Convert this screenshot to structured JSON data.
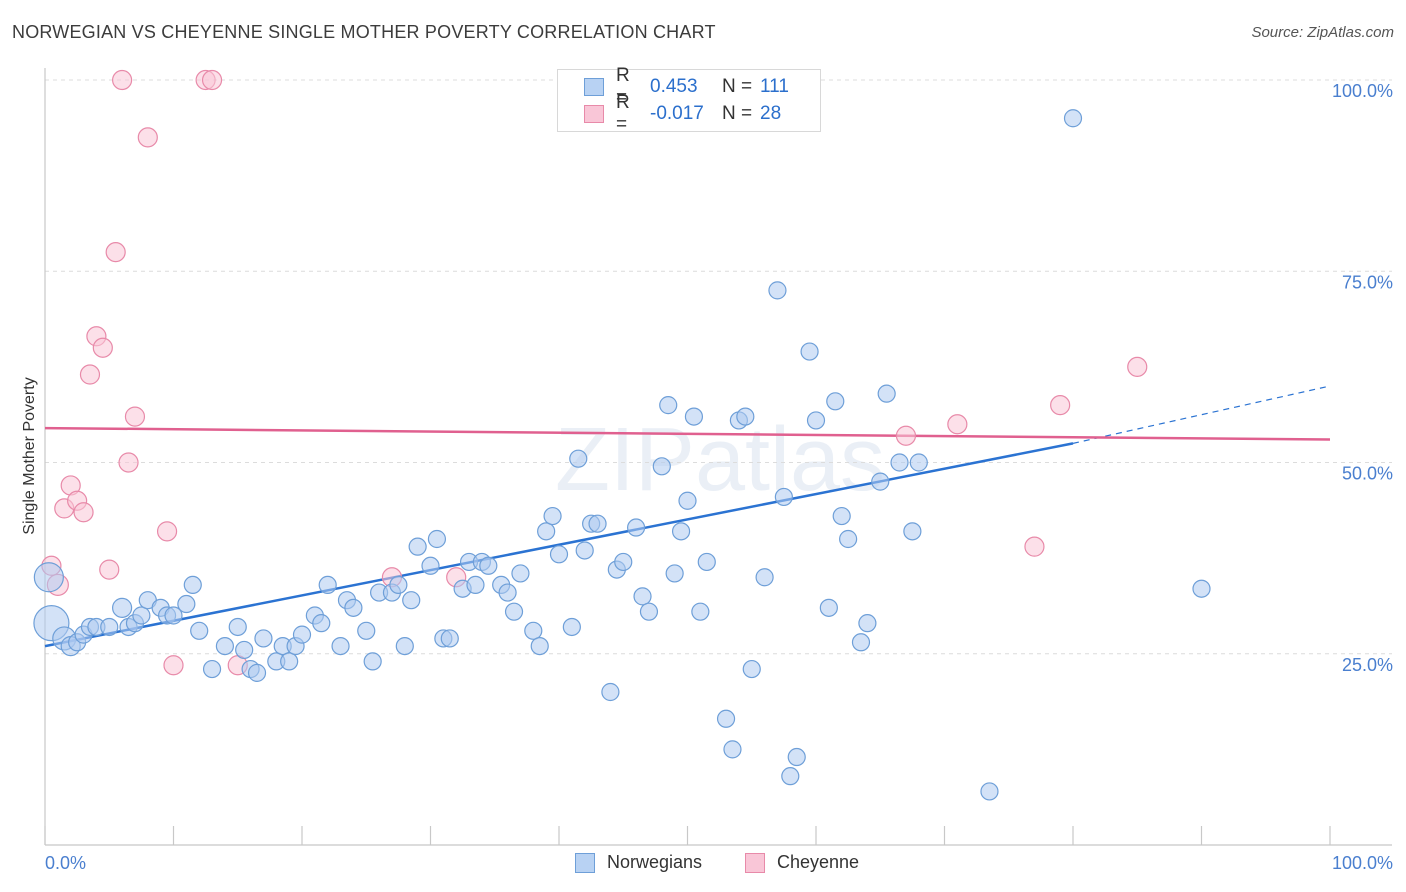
{
  "title": "NORWEGIAN VS CHEYENNE SINGLE MOTHER POVERTY CORRELATION CHART",
  "source": "Source: ZipAtlas.com",
  "watermark": "ZIPatlas",
  "legend": {
    "rows": [
      {
        "r_label": "R =",
        "r_value": "0.453",
        "n_label": "N =",
        "n_value": "111",
        "color": "#9fc3ee",
        "border": "#6e9fd8"
      },
      {
        "r_label": "R =",
        "r_value": "-0.017",
        "n_label": "N =",
        "n_value": "28",
        "color": "#f6b9ce",
        "border": "#e88aa9"
      }
    ]
  },
  "bottom_legend": [
    {
      "label": "Norwegians",
      "color": "#aecbf0",
      "border": "#6e9fd8"
    },
    {
      "label": "Cheyenne",
      "color": "#f9c6d7",
      "border": "#e88aa9"
    }
  ],
  "chart_data": {
    "type": "scatter",
    "title": "NORWEGIAN VS CHEYENNE SINGLE MOTHER POVERTY CORRELATION CHART",
    "xlabel": "",
    "ylabel": "Single Mother Poverty",
    "xlim": [
      0,
      100
    ],
    "ylim": [
      0,
      100
    ],
    "x_tick_labels": [
      "0.0%",
      "100.0%"
    ],
    "y_tick_labels": [
      "25.0%",
      "50.0%",
      "75.0%",
      "100.0%"
    ],
    "y_ticks": [
      25,
      50,
      75,
      100
    ],
    "grid": true,
    "series": [
      {
        "name": "Norwegians",
        "color": "#6e9fd8",
        "fill": "#aecbf0",
        "trend": {
          "x": [
            0,
            80
          ],
          "y": [
            26.0,
            52.5
          ],
          "dashed_to": [
            100,
            60.0
          ],
          "color": "#2b73d2"
        },
        "points": [
          [
            0.5,
            29,
            16
          ],
          [
            0.3,
            35,
            13
          ],
          [
            1.5,
            27,
            10
          ],
          [
            2,
            26,
            8
          ],
          [
            2.5,
            26.5,
            7
          ],
          [
            3,
            27.5,
            7
          ],
          [
            3.5,
            28.5,
            7
          ],
          [
            4,
            28.5,
            7
          ],
          [
            5,
            28.5,
            7
          ],
          [
            6,
            31,
            8
          ],
          [
            6.5,
            28.5,
            7
          ],
          [
            7,
            29,
            7
          ],
          [
            7.5,
            30,
            7
          ],
          [
            8,
            32,
            7
          ],
          [
            9,
            31,
            7
          ],
          [
            9.5,
            30,
            7
          ],
          [
            10,
            30,
            7
          ],
          [
            11,
            31.5,
            7
          ],
          [
            11.5,
            34,
            7
          ],
          [
            12,
            28,
            7
          ],
          [
            13,
            23,
            7
          ],
          [
            14,
            26,
            7
          ],
          [
            15,
            28.5,
            7
          ],
          [
            15.5,
            25.5,
            7
          ],
          [
            16,
            23,
            7
          ],
          [
            16.5,
            22.5,
            7
          ],
          [
            17,
            27,
            7
          ],
          [
            18,
            24,
            7
          ],
          [
            18.5,
            26,
            7
          ],
          [
            19,
            24,
            7
          ],
          [
            19.5,
            26,
            7
          ],
          [
            20,
            27.5,
            7
          ],
          [
            21,
            30,
            7
          ],
          [
            21.5,
            29,
            7
          ],
          [
            22,
            34,
            7
          ],
          [
            23,
            26,
            7
          ],
          [
            23.5,
            32,
            7
          ],
          [
            24,
            31,
            7
          ],
          [
            25,
            28,
            7
          ],
          [
            25.5,
            24,
            7
          ],
          [
            26,
            33,
            7
          ],
          [
            27,
            33,
            7
          ],
          [
            27.5,
            34,
            7
          ],
          [
            28,
            26,
            7
          ],
          [
            28.5,
            32,
            7
          ],
          [
            29,
            39,
            7
          ],
          [
            30,
            36.5,
            7
          ],
          [
            30.5,
            40,
            7
          ],
          [
            31,
            27,
            7
          ],
          [
            31.5,
            27,
            7
          ],
          [
            32.5,
            33.5,
            7
          ],
          [
            33,
            37,
            7
          ],
          [
            33.5,
            34,
            7
          ],
          [
            34,
            37,
            7
          ],
          [
            34.5,
            36.5,
            7
          ],
          [
            35.5,
            34,
            7
          ],
          [
            36,
            33,
            7
          ],
          [
            36.5,
            30.5,
            7
          ],
          [
            37,
            35.5,
            7
          ],
          [
            38,
            28,
            7
          ],
          [
            38.5,
            26,
            7
          ],
          [
            39,
            41,
            7
          ],
          [
            39.5,
            43,
            7
          ],
          [
            40,
            38,
            7
          ],
          [
            41,
            28.5,
            7
          ],
          [
            41.5,
            50.5,
            7
          ],
          [
            42,
            38.5,
            7
          ],
          [
            42.5,
            42,
            7
          ],
          [
            43,
            42,
            7
          ],
          [
            44,
            20,
            7
          ],
          [
            44.5,
            36,
            7
          ],
          [
            45,
            37,
            7
          ],
          [
            46,
            41.5,
            7
          ],
          [
            46.5,
            32.5,
            7
          ],
          [
            47,
            30.5,
            7
          ],
          [
            48,
            49.5,
            7
          ],
          [
            48.5,
            57.5,
            7
          ],
          [
            49,
            35.5,
            7
          ],
          [
            49.5,
            41,
            7
          ],
          [
            50,
            45,
            7
          ],
          [
            50.5,
            56,
            7
          ],
          [
            51,
            30.5,
            7
          ],
          [
            51.5,
            37,
            7
          ],
          [
            53,
            16.5,
            7
          ],
          [
            53.5,
            12.5,
            7
          ],
          [
            54,
            55.5,
            7
          ],
          [
            54.5,
            56,
            7
          ],
          [
            55,
            23,
            7
          ],
          [
            56,
            35,
            7
          ],
          [
            57,
            72.5,
            7
          ],
          [
            57.5,
            45.5,
            7
          ],
          [
            58,
            9,
            7
          ],
          [
            58.5,
            11.5,
            7
          ],
          [
            59.5,
            64.5,
            7
          ],
          [
            60,
            55.5,
            7
          ],
          [
            61,
            31,
            7
          ],
          [
            61.5,
            58,
            7
          ],
          [
            62,
            43,
            7
          ],
          [
            62.5,
            40,
            7
          ],
          [
            63.5,
            26.5,
            7
          ],
          [
            64,
            29,
            7
          ],
          [
            65,
            47.5,
            7
          ],
          [
            65.5,
            59,
            7
          ],
          [
            66.5,
            50,
            7
          ],
          [
            67.5,
            41,
            7
          ],
          [
            68,
            50,
            7
          ],
          [
            73.5,
            7,
            7
          ],
          [
            80,
            95,
            7
          ],
          [
            90,
            33.5,
            7
          ]
        ]
      },
      {
        "name": "Cheyenne",
        "color": "#e88aa9",
        "fill": "#f9c6d7",
        "trend": {
          "x": [
            0,
            100
          ],
          "y": [
            54.5,
            53.0
          ],
          "color": "#e0608f"
        },
        "points": [
          [
            0.5,
            36.5,
            8
          ],
          [
            1,
            34,
            9
          ],
          [
            1.5,
            44,
            8
          ],
          [
            2,
            47,
            8
          ],
          [
            2.5,
            45,
            8
          ],
          [
            3,
            43.5,
            8
          ],
          [
            3.5,
            61.5,
            8
          ],
          [
            4,
            66.5,
            8
          ],
          [
            4.5,
            65,
            8
          ],
          [
            5,
            36,
            8
          ],
          [
            5.5,
            77.5,
            8
          ],
          [
            6,
            100,
            8
          ],
          [
            6.5,
            50,
            8
          ],
          [
            7,
            56,
            8
          ],
          [
            8,
            92.5,
            8
          ],
          [
            9.5,
            41,
            8
          ],
          [
            10,
            23.5,
            8
          ],
          [
            12.5,
            100,
            8
          ],
          [
            13,
            100,
            8
          ],
          [
            15,
            23.5,
            8
          ],
          [
            27,
            35,
            8
          ],
          [
            32,
            35,
            8
          ],
          [
            67,
            53.5,
            8
          ],
          [
            71,
            55,
            8
          ],
          [
            77,
            39,
            8
          ],
          [
            79,
            57.5,
            8
          ],
          [
            85,
            62.5,
            8
          ]
        ]
      }
    ]
  }
}
